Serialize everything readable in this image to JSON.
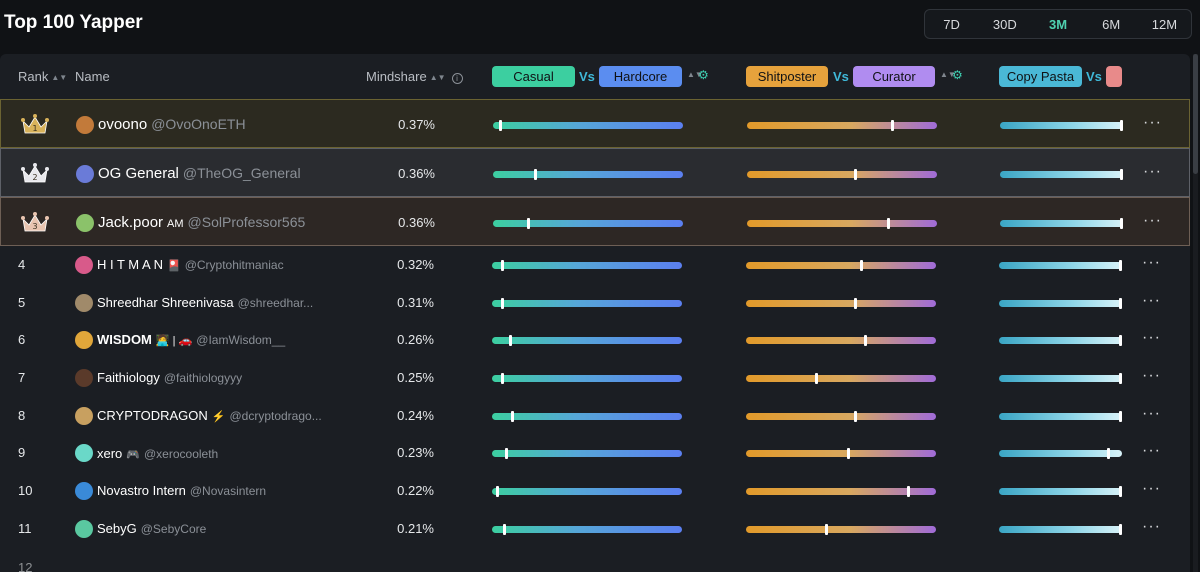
{
  "page": {
    "title": "Top 100 Yapper"
  },
  "periods": [
    {
      "label": "7D",
      "active": false
    },
    {
      "label": "30D",
      "active": false
    },
    {
      "label": "3M",
      "active": true
    },
    {
      "label": "6M",
      "active": false
    },
    {
      "label": "12M",
      "active": false
    }
  ],
  "columns": {
    "rank": "Rank",
    "name": "Name",
    "mindshare": "Mindshare",
    "vs": "Vs",
    "pair1": {
      "left": "Casual",
      "right": "Hardcore"
    },
    "pair2": {
      "left": "Shitposter",
      "right": "Curator"
    },
    "pair3": {
      "left": "Copy Pasta",
      "right": ""
    }
  },
  "colors": {
    "casual": "#3ccfa0",
    "hardcore": "#5b8df0",
    "shitposter": "#e6a23c",
    "curator": "#b08cf0",
    "copy_pasta": "#4ab8d6",
    "accent": "#4fd1b0"
  },
  "rows": [
    {
      "rank": "1",
      "name": "ovoono",
      "handle": "@OvoOnoETH",
      "badge": "",
      "mindshare": "0.37%",
      "casual_hardcore": 0.03,
      "shitposter_curator": 0.77,
      "copypasta": 1.0,
      "avatar_color": "#c27a3a"
    },
    {
      "rank": "2",
      "name": "OG General",
      "handle": "@TheOG_General",
      "badge": "",
      "mindshare": "0.36%",
      "casual_hardcore": 0.22,
      "shitposter_curator": 0.57,
      "copypasta": 1.0,
      "avatar_color": "#6a7bd8"
    },
    {
      "rank": "3",
      "name": "Jack.poor",
      "handle": "@SolProfessor565",
      "badge": "AM",
      "mindshare": "0.36%",
      "casual_hardcore": 0.18,
      "shitposter_curator": 0.75,
      "copypasta": 1.0,
      "avatar_color": "#8bc26a"
    },
    {
      "rank": "4",
      "name": "H I T M A N",
      "handle": "@Cryptohitmaniac",
      "badge": "🎴",
      "mindshare": "0.32%",
      "casual_hardcore": 0.05,
      "shitposter_curator": 0.61,
      "copypasta": 1.0,
      "avatar_color": "#d85a8a"
    },
    {
      "rank": "5",
      "name": "Shreedhar Shreenivasa",
      "handle": "@shreedhar...",
      "badge": "",
      "mindshare": "0.31%",
      "casual_hardcore": 0.05,
      "shitposter_curator": 0.58,
      "copypasta": 1.0,
      "avatar_color": "#a08a6a"
    },
    {
      "rank": "6",
      "name": "WISDOM",
      "handle": "@IamWisdom__",
      "badge": "🧑‍💻 | 🚗",
      "mindshare": "0.26%",
      "casual_hardcore": 0.09,
      "shitposter_curator": 0.63,
      "copypasta": 1.0,
      "avatar_color": "#e0a63a"
    },
    {
      "rank": "7",
      "name": "Faithiology",
      "handle": "@faithiologyyy",
      "badge": "",
      "mindshare": "0.25%",
      "casual_hardcore": 0.05,
      "shitposter_curator": 0.37,
      "copypasta": 1.0,
      "avatar_color": "#5a3a2a"
    },
    {
      "rank": "8",
      "name": "CRYPTODRAGON",
      "handle": "@dcryptodrago...",
      "badge": "⚡",
      "mindshare": "0.24%",
      "casual_hardcore": 0.1,
      "shitposter_curator": 0.58,
      "copypasta": 1.0,
      "avatar_color": "#c8a060"
    },
    {
      "rank": "9",
      "name": "xero",
      "handle": "@xerocooleth",
      "badge": "🎮",
      "mindshare": "0.23%",
      "casual_hardcore": 0.07,
      "shitposter_curator": 0.54,
      "copypasta": 0.9,
      "avatar_color": "#6ad8c8"
    },
    {
      "rank": "10",
      "name": "Novastro Intern",
      "handle": "@Novasintern",
      "badge": "",
      "mindshare": "0.22%",
      "casual_hardcore": 0.02,
      "shitposter_curator": 0.86,
      "copypasta": 1.0,
      "avatar_color": "#3a8ad8"
    },
    {
      "rank": "11",
      "name": "SebyG",
      "handle": "@SebyCore",
      "badge": "",
      "mindshare": "0.21%",
      "casual_hardcore": 0.06,
      "shitposter_curator": 0.42,
      "copypasta": 1.0,
      "avatar_color": "#5ac8a0"
    }
  ]
}
